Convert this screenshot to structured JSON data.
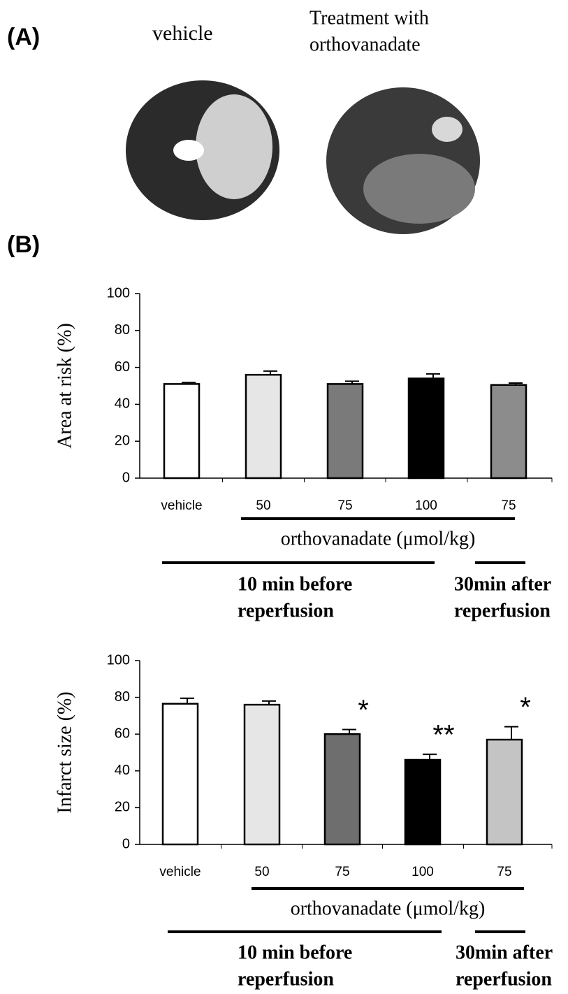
{
  "figure": {
    "panel_a": "(A)",
    "panel_b": "(B)",
    "photo_left": "vehicle",
    "photo_right": [
      "Treatment with",
      "orthovanadate"
    ]
  },
  "chart_data": [
    {
      "type": "bar",
      "y_label": "Area at risk (%)",
      "categories": [
        "vehicle",
        "50",
        "75",
        "100",
        "75"
      ],
      "values": [
        51,
        56,
        51,
        54,
        50.5
      ],
      "errors": [
        0.8,
        2,
        1.5,
        2.5,
        1
      ],
      "colors": [
        "#ffffff",
        "#e6e6e6",
        "#7a7a7a",
        "#000000",
        "#8c8c8c"
      ],
      "ylim": [
        0,
        100
      ],
      "yticks": [
        0,
        20,
        40,
        60,
        80,
        100
      ],
      "dose_label": "orthovanadate (μmol/kg)",
      "period_labels": [
        [
          "10 min before",
          "reperfusion"
        ],
        [
          "30min after",
          "reperfusion"
        ]
      ]
    },
    {
      "type": "bar",
      "y_label": "Infarct size (%)",
      "categories": [
        "vehicle",
        "50",
        "75",
        "100",
        "75"
      ],
      "values": [
        76.5,
        76,
        60,
        46,
        57
      ],
      "errors": [
        3,
        2,
        2.5,
        3,
        7
      ],
      "colors": [
        "#ffffff",
        "#e6e6e6",
        "#6e6e6e",
        "#000000",
        "#c4c4c4"
      ],
      "significance": [
        null,
        null,
        "*",
        "**",
        "*"
      ],
      "ylim": [
        0,
        100
      ],
      "yticks": [
        0,
        20,
        40,
        60,
        80,
        100
      ],
      "dose_label": "orthovanadate (μmol/kg)",
      "period_labels": [
        [
          "10 min before",
          "reperfusion"
        ],
        [
          "30min after",
          "reperfusion"
        ]
      ]
    }
  ]
}
